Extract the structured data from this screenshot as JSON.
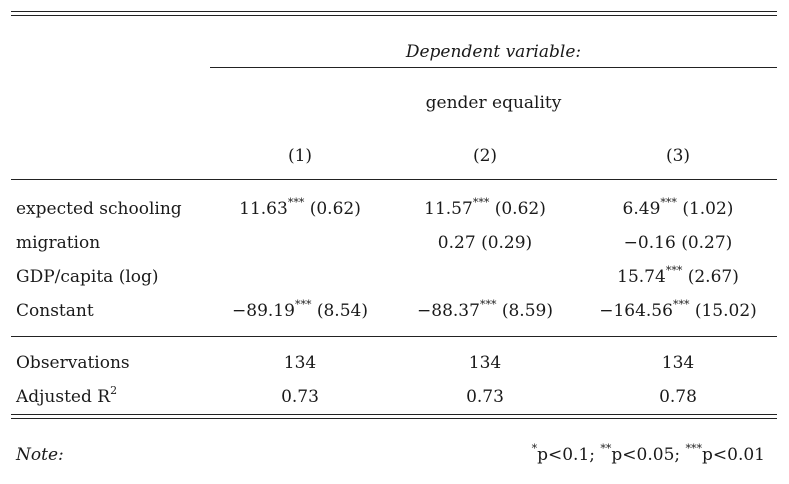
{
  "header": {
    "dependent_variable_label": "Dependent variable:",
    "dependent_variable_name": "gender equality",
    "columns": [
      "(1)",
      "(2)",
      "(3)"
    ]
  },
  "rows": [
    {
      "label": "expected schooling",
      "cells": [
        {
          "coef": "11.63",
          "stars": "***",
          "se": "(0.62)"
        },
        {
          "coef": "11.57",
          "stars": "***",
          "se": "(0.62)"
        },
        {
          "coef": "6.49",
          "stars": "***",
          "se": "(1.02)"
        }
      ]
    },
    {
      "label": "migration",
      "cells": [
        {
          "coef": "",
          "stars": "",
          "se": ""
        },
        {
          "coef": "0.27",
          "stars": "",
          "se": "(0.29)"
        },
        {
          "coef": "−0.16",
          "stars": "",
          "se": "(0.27)"
        }
      ]
    },
    {
      "label": "GDP/capita (log)",
      "cells": [
        {
          "coef": "",
          "stars": "",
          "se": ""
        },
        {
          "coef": "",
          "stars": "",
          "se": ""
        },
        {
          "coef": "15.74",
          "stars": "***",
          "se": "(2.67)"
        }
      ]
    },
    {
      "label": "Constant",
      "cells": [
        {
          "coef": "−89.19",
          "stars": "***",
          "se": "(8.54)"
        },
        {
          "coef": "−88.37",
          "stars": "***",
          "se": "(8.59)"
        },
        {
          "coef": "−164.56",
          "stars": "***",
          "se": "(15.02)"
        }
      ]
    }
  ],
  "stats": [
    {
      "label": "Observations",
      "sup": "",
      "values": [
        "134",
        "134",
        "134"
      ]
    },
    {
      "label": "Adjusted R",
      "sup": "2",
      "values": [
        "0.73",
        "0.73",
        "0.78"
      ]
    }
  ],
  "note": {
    "label": "Note:",
    "sig_p1": "p<0.1; ",
    "sig_p2": "p<0.05; ",
    "sig_p3": "p<0.01",
    "star1": "*",
    "star2": "**",
    "star3": "***"
  }
}
